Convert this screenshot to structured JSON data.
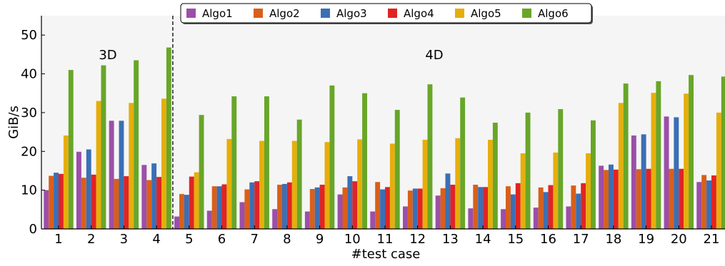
{
  "chart_data": {
    "type": "bar",
    "xlabel": "#test case",
    "ylabel": "GiB/s",
    "ylim": [
      0,
      55
    ],
    "yticks": [
      0,
      10,
      20,
      30,
      40,
      50
    ],
    "grid": false,
    "legend_position": "top-center",
    "categories": [
      "1",
      "2",
      "3",
      "4",
      "5",
      "6",
      "7",
      "8",
      "9",
      "10",
      "11",
      "12",
      "13",
      "14",
      "15",
      "16",
      "17",
      "18",
      "19",
      "20",
      "21"
    ],
    "annotations": [
      {
        "text": "3D"
      },
      {
        "text": "4D"
      }
    ],
    "divider_after_category": "4",
    "colors": {
      "plot_background": "#f5f5f5",
      "divider": "#000000"
    },
    "series": [
      {
        "name": "Algo1",
        "color": "#9b4fa8",
        "values": [
          10.0,
          19.9,
          27.9,
          16.5,
          3.2,
          4.7,
          6.9,
          5.1,
          4.5,
          8.9,
          4.5,
          5.8,
          8.6,
          5.3,
          5.1,
          5.5,
          5.8,
          16.3,
          24.1,
          29.0,
          12.1
        ]
      },
      {
        "name": "Algo2",
        "color": "#d95f1a",
        "values": [
          13.7,
          13.2,
          12.9,
          12.6,
          9.0,
          11.0,
          10.2,
          11.4,
          10.3,
          10.7,
          12.1,
          9.9,
          10.5,
          11.4,
          11.0,
          10.7,
          11.2,
          15.2,
          15.4,
          15.5,
          13.9
        ]
      },
      {
        "name": "Algo3",
        "color": "#3a6fb5",
        "values": [
          14.5,
          20.5,
          27.9,
          16.9,
          8.8,
          11.0,
          12.0,
          11.6,
          10.7,
          13.6,
          10.2,
          10.4,
          14.3,
          10.8,
          8.9,
          9.5,
          9.1,
          16.6,
          24.4,
          28.8,
          12.5
        ]
      },
      {
        "name": "Algo4",
        "color": "#e02424",
        "values": [
          14.2,
          14.0,
          13.6,
          13.4,
          13.5,
          11.5,
          12.3,
          12.0,
          11.4,
          12.3,
          10.8,
          10.4,
          11.4,
          10.8,
          11.8,
          11.3,
          11.8,
          15.3,
          15.5,
          15.5,
          13.8
        ]
      },
      {
        "name": "Algo5",
        "color": "#e6ae0c",
        "values": [
          24.1,
          33.0,
          32.5,
          33.6,
          14.6,
          23.2,
          22.7,
          22.7,
          22.4,
          23.1,
          22.0,
          23.0,
          23.4,
          23.0,
          19.5,
          19.7,
          19.5,
          32.5,
          35.1,
          34.9,
          30.0
        ]
      },
      {
        "name": "Algo6",
        "color": "#68a628",
        "values": [
          41.0,
          42.2,
          43.5,
          46.8,
          29.4,
          34.2,
          34.2,
          28.2,
          37.0,
          35.0,
          30.7,
          37.3,
          33.9,
          27.4,
          30.0,
          30.9,
          28.0,
          37.5,
          38.1,
          39.7,
          39.3
        ]
      }
    ]
  }
}
